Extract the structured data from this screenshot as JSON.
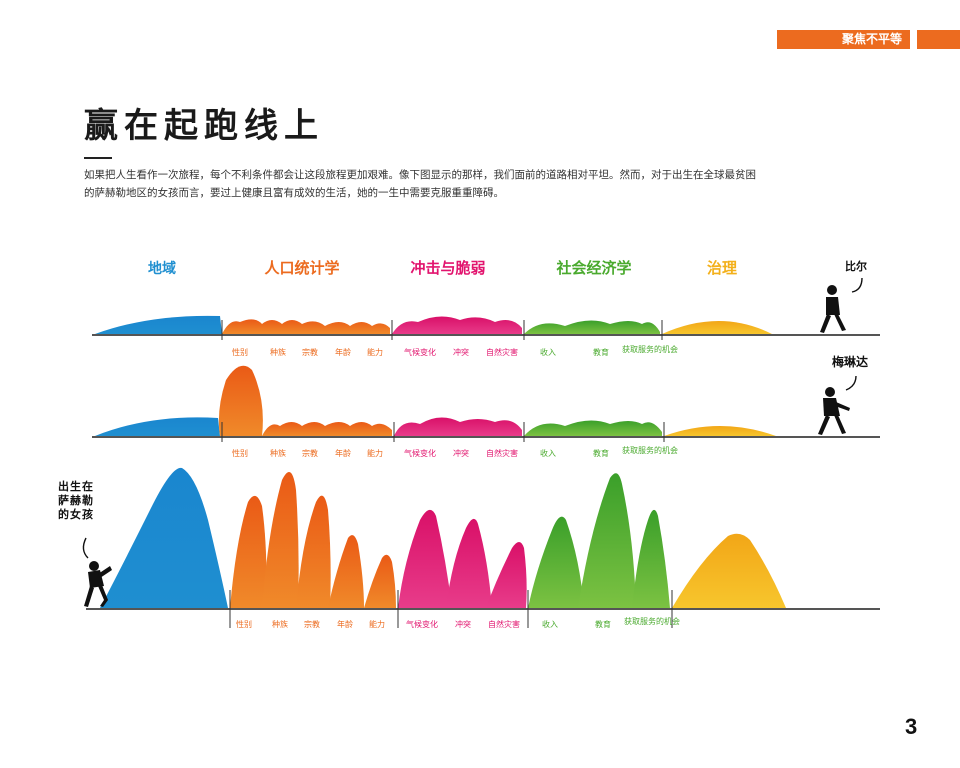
{
  "header": {
    "section_tag": "聚焦不平等"
  },
  "title": "赢在起跑线上",
  "intro": "如果把人生看作一次旅程，每个不利条件都会让这段旅程更加艰难。像下图显示的那样，我们面前的道路相对平坦。然而，对于出生在全球最贫困的萨赫勒地区的女孩而言，要过上健康且富有成效的生活，她的一生中需要克服重重障碍。",
  "categories": [
    {
      "label": "地域",
      "color": "#1f8fd0"
    },
    {
      "label": "人口统计学",
      "color": "#ec6b1f"
    },
    {
      "label": "冲击与脆弱",
      "color": "#e2146e"
    },
    {
      "label": "社会经济学",
      "color": "#4aaa2e"
    },
    {
      "label": "治理",
      "color": "#f3b01a"
    }
  ],
  "factors": [
    "性别",
    "种族",
    "宗教",
    "年龄",
    "能力",
    "气候变化",
    "冲突",
    "自然灾害",
    "收入",
    "教育",
    "获取服务的机会"
  ],
  "people": {
    "row1": "比尔",
    "row2": "梅琳达",
    "row3": "出生在萨赫勒的女孩"
  },
  "obstacle_levels": {
    "row1": {
      "地域": 0.12,
      "人口统计学": 0.14,
      "冲击与脆弱": 0.14,
      "社会经济学": 0.12,
      "治理": 0.16
    },
    "row2": {
      "地域": 0.14,
      "性别": 0.75,
      "人口统计学": 0.14,
      "冲击与脆弱": 0.15,
      "社会经济学": 0.14,
      "治理": 0.12
    },
    "row3": {
      "地域": 0.95,
      "人口统计学": 0.95,
      "冲击与脆弱": 0.72,
      "社会经济学": 1.0,
      "治理": 0.55
    }
  },
  "page_number": "3"
}
